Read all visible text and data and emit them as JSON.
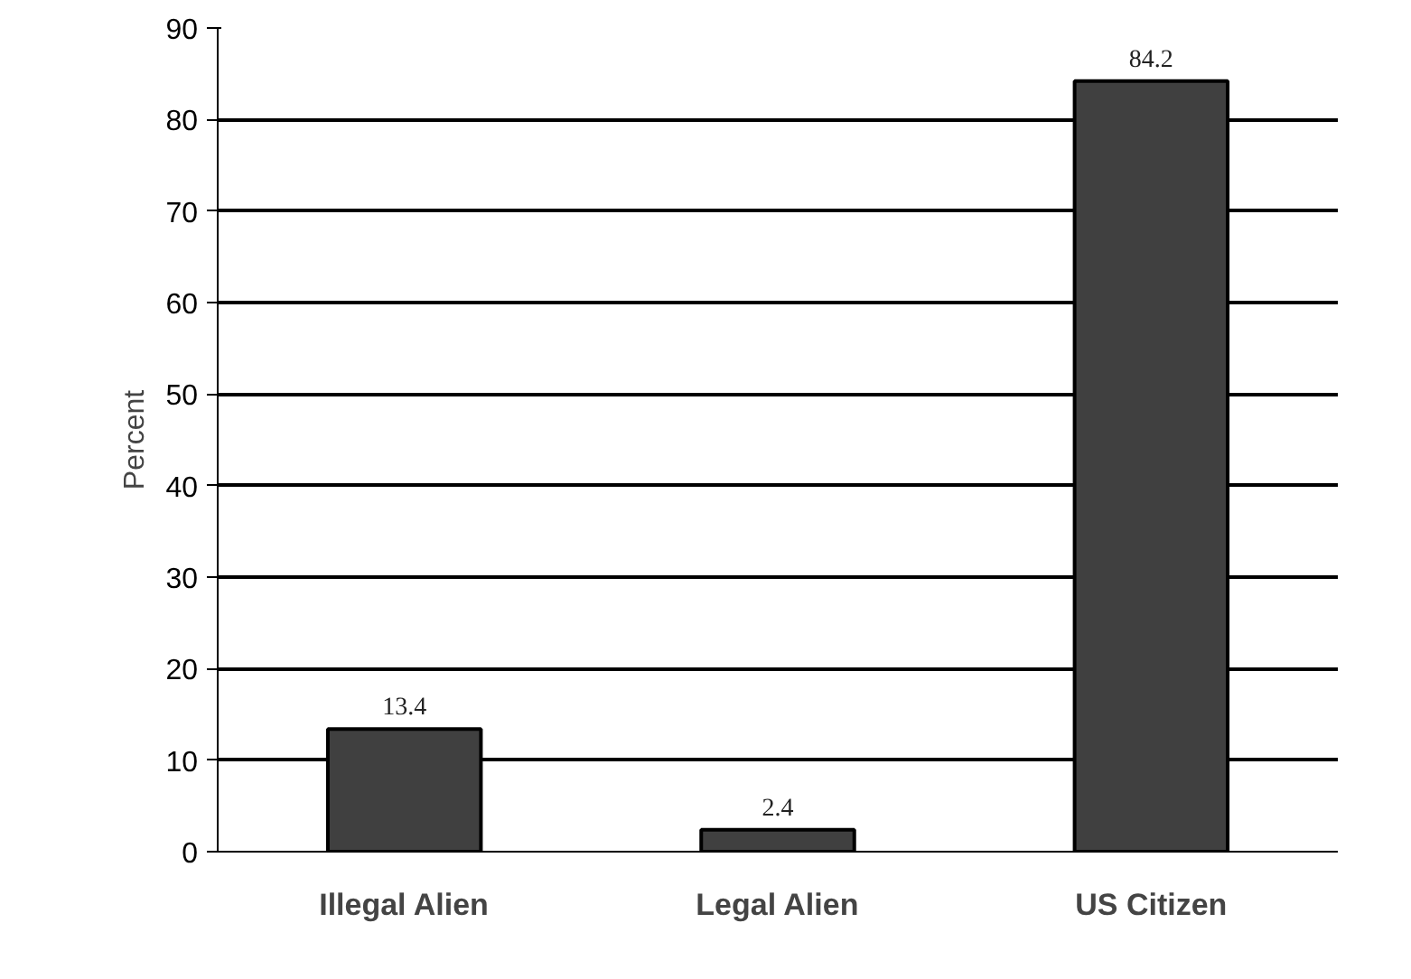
{
  "chart_data": {
    "type": "bar",
    "ylabel": "Percent",
    "categories": [
      "Illegal Alien",
      "Legal Alien",
      "US Citizen"
    ],
    "values": [
      13.4,
      2.4,
      84.2
    ],
    "color": "#404040",
    "ylim": [
      0,
      90
    ],
    "yticks": [
      0,
      10,
      20,
      30,
      40,
      50,
      60,
      70,
      80,
      90
    ],
    "grid": "y",
    "data_labels": true
  }
}
